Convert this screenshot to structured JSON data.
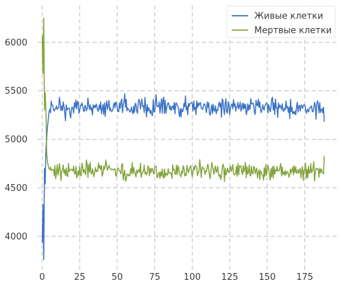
{
  "chart_data": {
    "type": "line",
    "title": "",
    "xlabel": "",
    "ylabel": "",
    "xlim": [
      -3,
      198
    ],
    "ylim": [
      3650,
      6380
    ],
    "xticks": [
      0,
      25,
      50,
      75,
      100,
      125,
      150,
      175
    ],
    "yticks": [
      4000,
      4500,
      5000,
      5500,
      6000
    ],
    "grid": true,
    "legend": "top-right",
    "x_range": [
      0,
      188
    ],
    "series": [
      {
        "name": "Живые клетки",
        "color": "#3a72c4",
        "start": [
          3930,
          4330,
          3760,
          4700,
          4540,
          4900,
          5010,
          5120,
          5200,
          5270,
          5310
        ],
        "level": 5330,
        "spread": 95,
        "end": 5180
      },
      {
        "name": "Мертвые клетки",
        "color": "#82a33c",
        "start": [
          6070,
          5680,
          6250,
          5300,
          5480,
          5310,
          4860,
          4770,
          4730,
          4700,
          4690
        ],
        "level": 4670,
        "spread": 85,
        "end": 4830
      }
    ]
  }
}
